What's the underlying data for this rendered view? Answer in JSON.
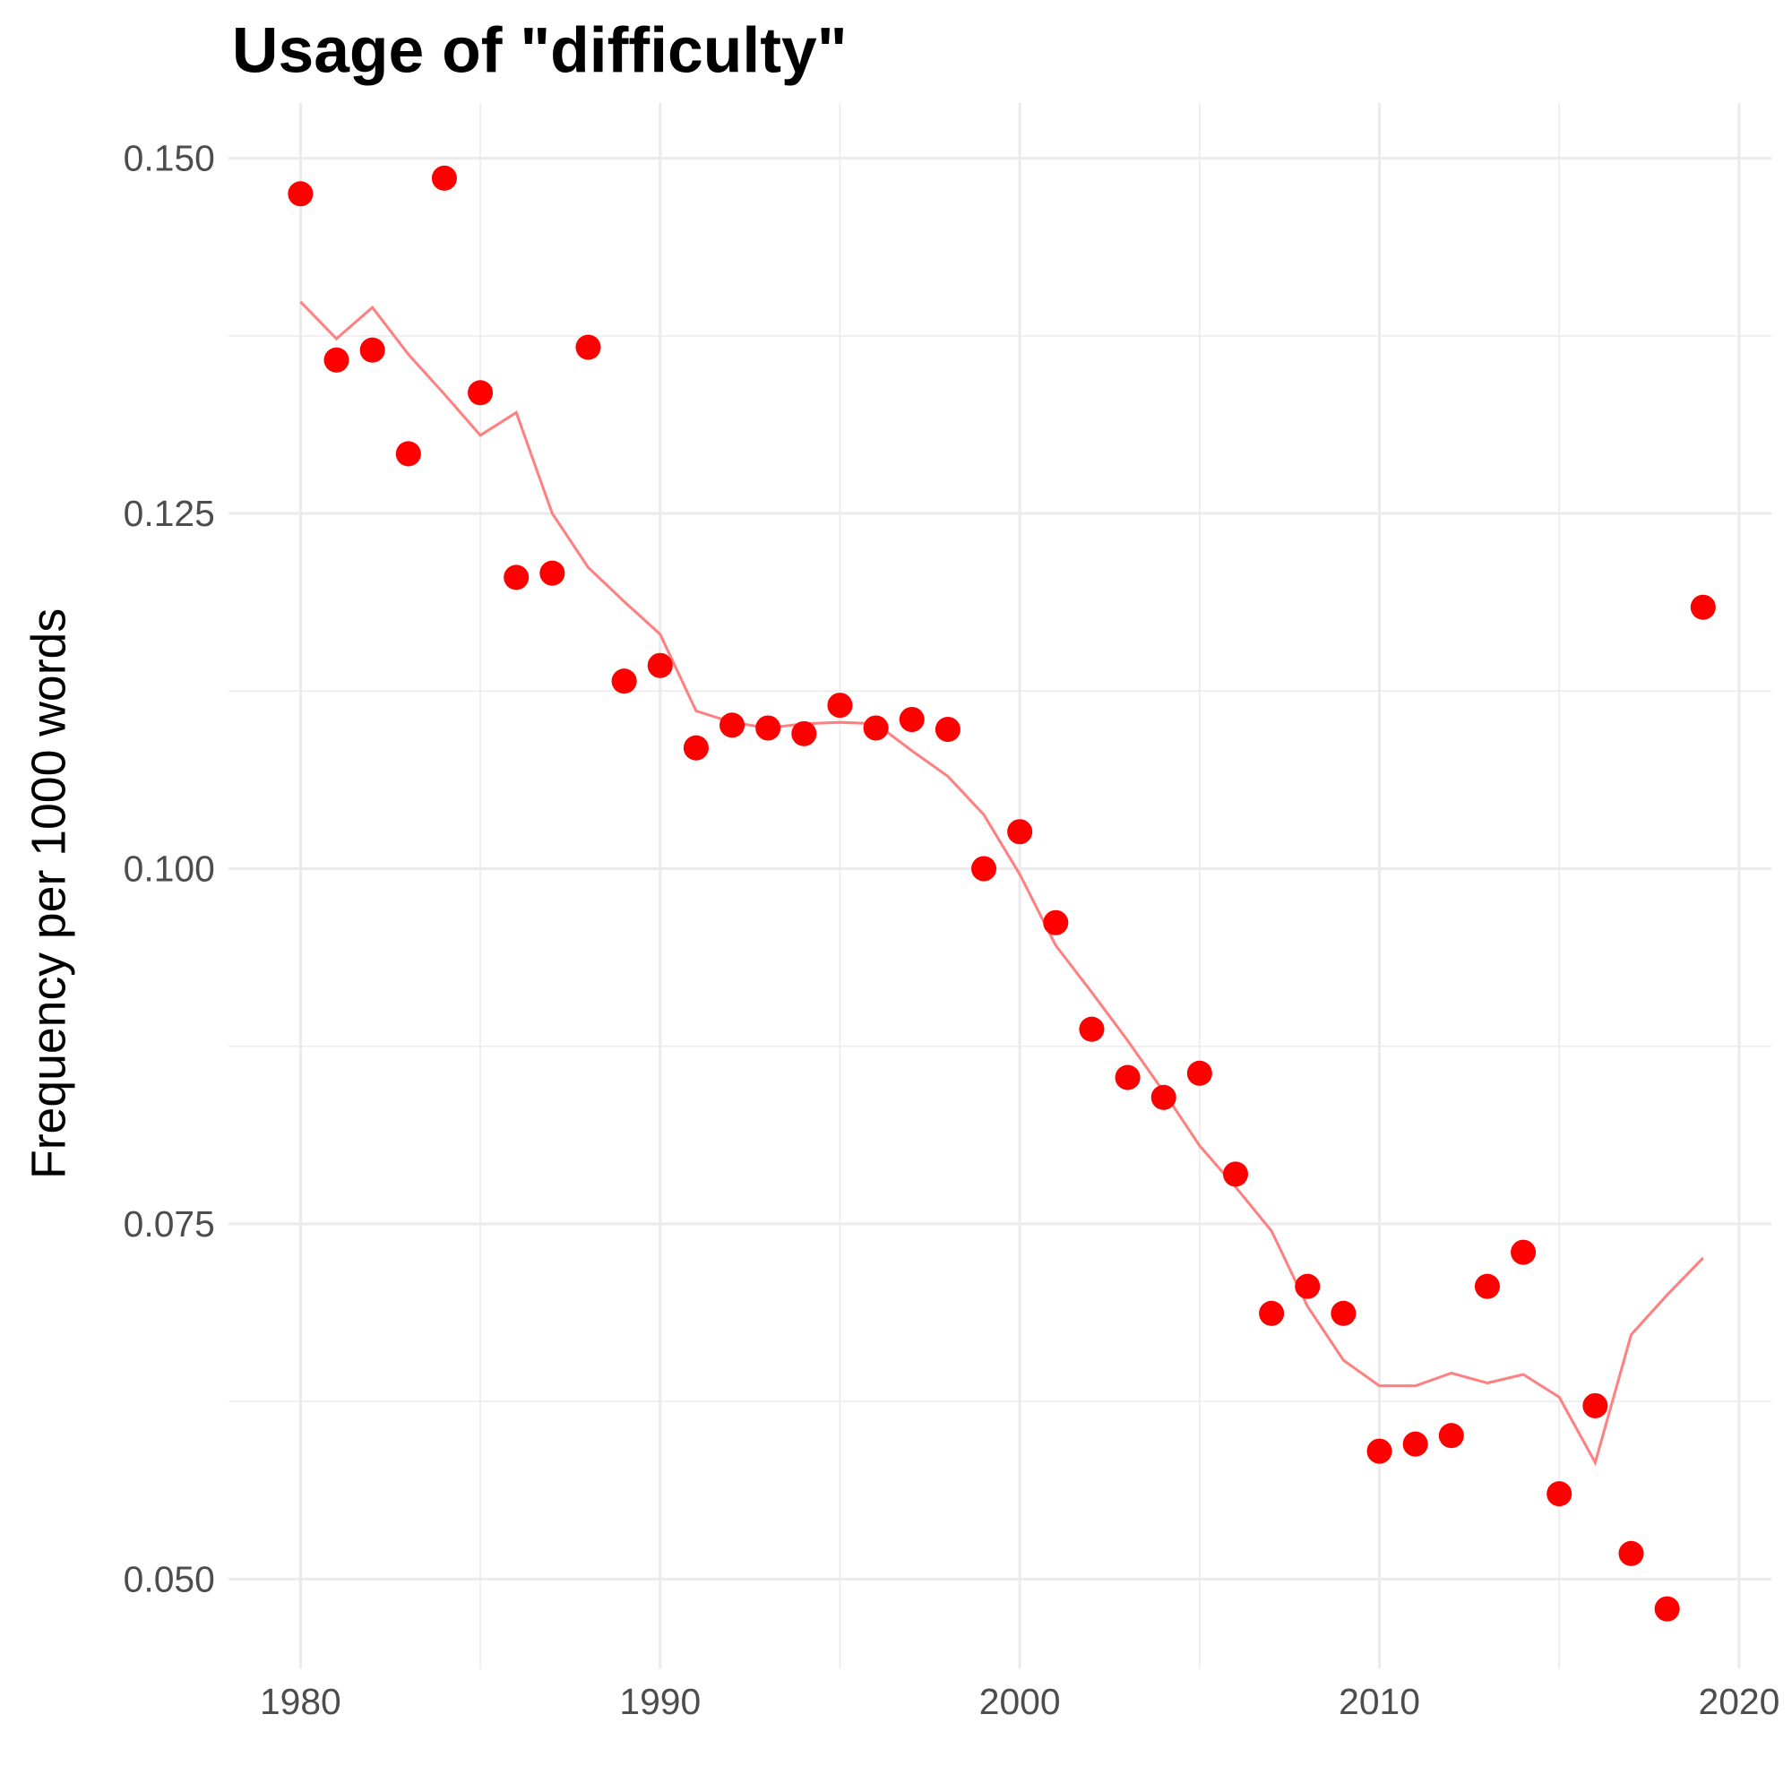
{
  "chart_data": {
    "type": "scatter",
    "title": "Usage of \"difficulty\"",
    "xlabel": "",
    "ylabel": "Frequency per 1000 words",
    "xlim": [
      1978,
      2020.9
    ],
    "ylim": [
      0.0437,
      0.1539
    ],
    "x_ticks": [
      1980,
      1990,
      2000,
      2010,
      2020
    ],
    "y_ticks": [
      0.05,
      0.075,
      0.1,
      0.125,
      0.15
    ],
    "y_tick_labels": [
      "0.050",
      "0.075",
      "0.100",
      "0.125",
      "0.150"
    ],
    "grid": true,
    "colors": {
      "points": "#ff0000",
      "line": "#ff8080",
      "grid": "#ebebeb"
    },
    "x": [
      1980,
      1981,
      1982,
      1983,
      1984,
      1985,
      1986,
      1987,
      1988,
      1989,
      1990,
      1991,
      1992,
      1993,
      1994,
      1995,
      1996,
      1997,
      1998,
      1999,
      2000,
      2001,
      2002,
      2003,
      2004,
      2005,
      2006,
      2007,
      2008,
      2009,
      2010,
      2011,
      2012,
      2013,
      2014,
      2015,
      2016,
      2017,
      2018,
      2019
    ],
    "series": [
      {
        "type": "scatter",
        "values": [
          0.1475,
          0.1358,
          0.1365,
          0.1292,
          0.1486,
          0.1335,
          0.1205,
          0.1208,
          0.1367,
          0.1132,
          0.1143,
          0.1085,
          0.1101,
          0.1099,
          0.1095,
          0.1115,
          0.1099,
          0.1105,
          0.1098,
          0.1,
          0.1026,
          0.0962,
          0.0887,
          0.0853,
          0.0839,
          0.0856,
          0.0785,
          0.0687,
          0.0706,
          0.0687,
          0.059,
          0.0595,
          0.0601,
          0.0706,
          0.073,
          0.056,
          0.0622,
          0.0518,
          0.0479,
          0.1184
        ]
      },
      {
        "type": "line",
        "values": [
          0.1399,
          0.1373,
          0.1395,
          0.1362,
          0.1334,
          0.1305,
          0.1321,
          0.125,
          0.1212,
          0.1188,
          0.1165,
          0.1111,
          0.1103,
          0.1099,
          0.1102,
          0.1103,
          0.1102,
          0.1083,
          0.1065,
          0.1038,
          0.0996,
          0.0946,
          0.0913,
          0.0879,
          0.0843,
          0.0805,
          0.0776,
          0.0745,
          0.0692,
          0.0654,
          0.0636,
          0.0636,
          0.0645,
          0.0638,
          0.0644,
          0.0628,
          0.0582,
          0.0672,
          0.07,
          0.0726
        ]
      }
    ]
  }
}
